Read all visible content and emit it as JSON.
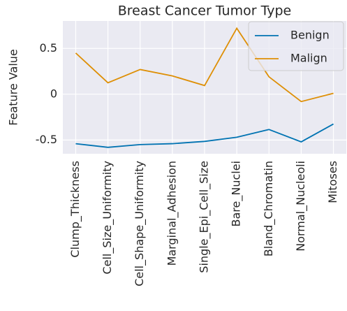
{
  "chart_data": {
    "type": "line",
    "title": "Breast Cancer Tumor Type",
    "ylabel": "Feature Value",
    "categories": [
      "Clump_Thickness",
      "Cell_Size_Uniformity",
      "Cell_Shape_Uniformity",
      "Marginal_Adhesion",
      "Single_Epi_Cell_Size",
      "Bare_Nuclei",
      "Bland_Chromatin",
      "Normal_Nucleoli",
      "Mitoses"
    ],
    "series": [
      {
        "name": "Benign",
        "color": "#0173b2",
        "values": [
          -0.54,
          -0.58,
          -0.55,
          -0.54,
          -0.515,
          -0.47,
          -0.385,
          -0.52,
          -0.325
        ]
      },
      {
        "name": "Malign",
        "color": "#de8f05",
        "values": [
          0.45,
          0.125,
          0.27,
          0.2,
          0.095,
          0.72,
          0.19,
          -0.08,
          0.01
        ]
      }
    ],
    "ylim": [
      -0.65,
      0.8
    ],
    "yticks": [
      -0.5,
      0.0,
      0.5
    ],
    "grid": true,
    "legend": "upper right"
  }
}
